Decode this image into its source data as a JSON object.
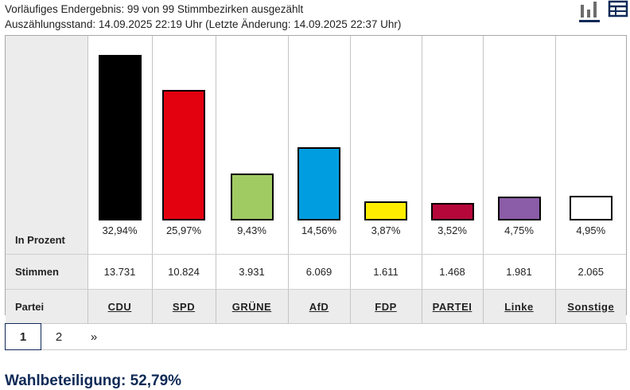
{
  "header": {
    "line1": "Vorläufiges Endergebnis: 99 von 99 Stimmbezirken ausgezählt",
    "line2": "Auszählungsstand: 14.09.2025 22:19 Uhr (Letzte Änderung: 14.09.2025 22:37 Uhr)"
  },
  "view_toggle": {
    "icons": [
      "bar-chart-icon",
      "table-icon"
    ],
    "active": "bar-chart-icon"
  },
  "table": {
    "row_labels": {
      "percent": "In Prozent",
      "votes": "Stimmen",
      "party": "Partei"
    }
  },
  "chart_data": {
    "type": "bar",
    "categories": [
      "CDU",
      "SPD",
      "GRÜNE",
      "AfD",
      "FDP",
      "PARTEI",
      "Linke",
      "Sonstige"
    ],
    "values": [
      32.94,
      25.97,
      9.43,
      14.56,
      3.87,
      3.52,
      4.75,
      4.95
    ],
    "value_labels": [
      "32,94%",
      "25,97%",
      "9,43%",
      "14,56%",
      "3,87%",
      "3,52%",
      "4,75%",
      "4,95%"
    ],
    "votes": [
      "13.731",
      "10.824",
      "3.931",
      "6.069",
      "1.611",
      "1.468",
      "1.981",
      "2.065"
    ],
    "colors": [
      "#000000",
      "#e3000f",
      "#a0cb63",
      "#009ee0",
      "#ffed00",
      "#b5073a",
      "#8b5ca8",
      "#ffffff"
    ],
    "ylim": [
      0,
      33
    ]
  },
  "pagination": {
    "pages": [
      "1",
      "2"
    ],
    "next": "»",
    "active": "1"
  },
  "turnout": {
    "text": "Wahlbeteiligung: 52,79%"
  }
}
